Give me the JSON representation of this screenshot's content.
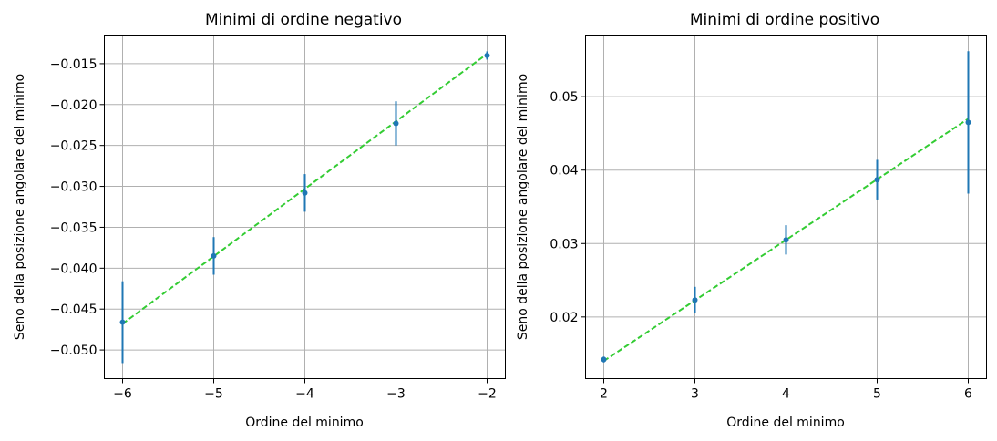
{
  "chart_data": [
    {
      "type": "scatter",
      "title": "Minimi di ordine negativo",
      "xlabel": "Ordine del minimo",
      "ylabel": "Seno della posizione angolare del minimo",
      "xlim": [
        -6.2,
        -1.8
      ],
      "ylim": [
        -0.0535,
        -0.0115
      ],
      "xticks": [
        -6,
        -5,
        -4,
        -3,
        -2
      ],
      "xtick_labels": [
        "−6",
        "−5",
        "−4",
        "−3",
        "−2"
      ],
      "yticks": [
        -0.05,
        -0.045,
        -0.04,
        -0.035,
        -0.03,
        -0.025,
        -0.02,
        -0.015
      ],
      "ytick_labels": [
        "−0.050",
        "−0.045",
        "−0.040",
        "−0.035",
        "−0.030",
        "−0.025",
        "−0.020",
        "−0.015"
      ],
      "grid": true,
      "series": [
        {
          "name": "data",
          "x": [
            -6,
            -5,
            -4,
            -3,
            -2
          ],
          "y": [
            -0.0466,
            -0.0385,
            -0.0308,
            -0.0223,
            -0.014
          ],
          "yerr": [
            0.005,
            0.0023,
            0.0023,
            0.0027,
            0.0005
          ],
          "color": "#1f77b4"
        },
        {
          "name": "fit",
          "x": [
            -6,
            -2
          ],
          "y": [
            -0.0468,
            -0.0138
          ],
          "style": "dashed",
          "color": "#33cc33"
        }
      ]
    },
    {
      "type": "scatter",
      "title": "Minimi di ordine positivo",
      "xlabel": "Ordine del minimo",
      "ylabel": "Seno della posizione angolare del minimo",
      "xlim": [
        1.8,
        6.2
      ],
      "ylim": [
        0.0116,
        0.0584
      ],
      "xticks": [
        2,
        3,
        4,
        5,
        6
      ],
      "xtick_labels": [
        "2",
        "3",
        "4",
        "5",
        "6"
      ],
      "yticks": [
        0.02,
        0.03,
        0.04,
        0.05
      ],
      "ytick_labels": [
        "0.02",
        "0.03",
        "0.04",
        "0.05"
      ],
      "grid": true,
      "series": [
        {
          "name": "data",
          "x": [
            2,
            3,
            4,
            5,
            6
          ],
          "y": [
            0.0142,
            0.0223,
            0.0305,
            0.0387,
            0.0465
          ],
          "yerr": [
            0.0004,
            0.0018,
            0.002,
            0.0027,
            0.0097
          ],
          "color": "#1f77b4"
        },
        {
          "name": "fit",
          "x": [
            2,
            6
          ],
          "y": [
            0.014,
            0.047
          ],
          "style": "dashed",
          "color": "#33cc33"
        }
      ]
    }
  ]
}
